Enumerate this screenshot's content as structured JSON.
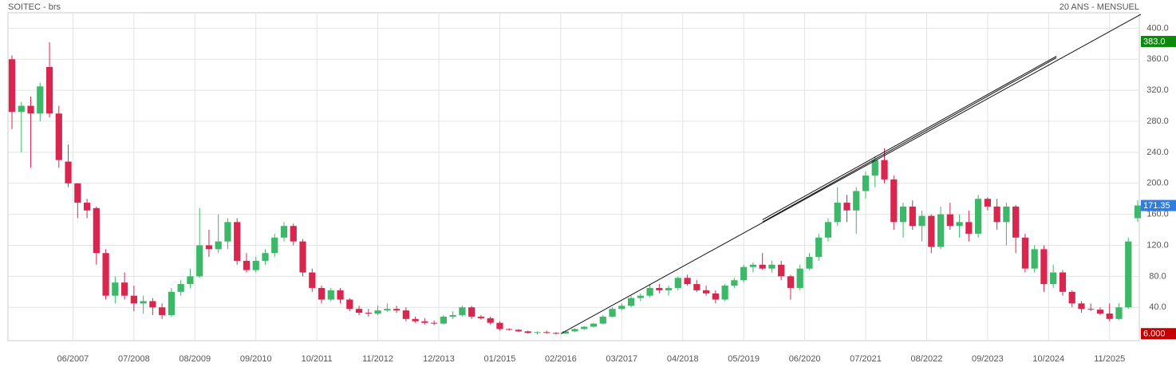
{
  "chart_data": {
    "type": "candlestick",
    "title": "SOITEC - brs",
    "subtitle": "20 ANS - MENSUEL",
    "x": [
      "05/2006",
      "07/2006",
      "09/2006",
      "11/2006",
      "01/2007",
      "03/2007",
      "05/2007",
      "07/2007",
      "09/2007",
      "11/2007",
      "01/2008",
      "03/2008",
      "05/2008",
      "07/2008",
      "09/2008",
      "11/2008",
      "01/2009",
      "03/2009",
      "05/2009",
      "07/2009",
      "09/2009",
      "11/2009",
      "01/2010",
      "03/2010",
      "05/2010",
      "07/2010",
      "09/2010",
      "11/2010",
      "01/2011",
      "03/2011",
      "05/2011",
      "07/2011",
      "09/2011",
      "11/2011",
      "01/2012",
      "03/2012",
      "05/2012",
      "07/2012",
      "09/2012",
      "11/2012",
      "01/2013",
      "03/2013",
      "05/2013",
      "07/2013",
      "09/2013",
      "11/2013",
      "01/2014",
      "03/2014",
      "05/2014",
      "07/2014",
      "09/2014",
      "11/2014",
      "01/2015",
      "03/2015",
      "05/2015",
      "07/2015",
      "09/2015",
      "11/2015",
      "01/2016",
      "03/2016",
      "05/2016",
      "07/2016",
      "09/2016",
      "11/2016",
      "01/2017",
      "03/2017",
      "05/2017",
      "07/2017",
      "09/2017",
      "11/2017",
      "01/2018",
      "03/2018",
      "05/2018",
      "07/2018",
      "09/2018",
      "11/2018",
      "01/2019",
      "03/2019",
      "05/2019",
      "07/2019",
      "09/2019",
      "11/2019",
      "01/2020",
      "03/2020",
      "05/2020",
      "07/2020",
      "09/2020",
      "11/2020",
      "01/2021",
      "03/2021",
      "05/2021",
      "07/2021",
      "09/2021",
      "11/2021",
      "01/2022",
      "03/2022",
      "05/2022",
      "07/2022",
      "09/2022",
      "11/2022",
      "01/2023",
      "03/2023",
      "05/2023",
      "07/2023",
      "09/2023",
      "11/2023",
      "01/2024",
      "03/2024",
      "05/2024",
      "07/2024",
      "09/2024",
      "11/2024",
      "01/2025",
      "03/2025",
      "05/2025",
      "07/2025",
      "09/2025",
      "11/2025",
      "01/2026",
      "03/2026",
      "05/2026"
    ],
    "open": [
      360,
      292,
      300,
      290,
      350,
      290,
      228,
      200,
      175,
      168,
      110,
      55,
      72,
      55,
      45,
      48,
      40,
      30,
      60,
      70,
      80,
      120,
      115,
      125,
      150,
      100,
      88,
      100,
      110,
      130,
      145,
      125,
      85,
      65,
      50,
      62,
      50,
      38,
      33,
      32,
      36,
      38,
      36,
      25,
      22,
      20,
      19,
      28,
      30,
      40,
      28,
      26,
      20,
      12,
      11,
      9,
      7,
      8,
      7,
      6,
      9,
      12,
      15,
      19,
      28,
      38,
      42,
      52,
      55,
      65,
      62,
      65,
      78,
      70,
      62,
      58,
      50,
      68,
      75,
      92,
      95,
      90,
      95,
      80,
      65,
      90,
      105,
      130,
      150,
      175,
      165,
      190,
      210,
      230,
      205,
      150,
      170,
      145,
      158,
      118,
      160,
      145,
      150,
      135,
      180,
      170,
      150,
      170,
      130,
      90,
      115,
      70,
      85,
      60,
      45,
      38,
      37,
      32,
      25,
      40,
      155
    ],
    "high": [
      365,
      305,
      312,
      330,
      382,
      300,
      250,
      200,
      180,
      170,
      115,
      80,
      85,
      68,
      55,
      52,
      45,
      65,
      75,
      90,
      168,
      140,
      160,
      155,
      155,
      110,
      105,
      115,
      135,
      150,
      148,
      128,
      90,
      68,
      65,
      65,
      52,
      42,
      38,
      42,
      45,
      42,
      40,
      28,
      26,
      23,
      30,
      35,
      42,
      42,
      30,
      28,
      22,
      13,
      12,
      10,
      9,
      10,
      8,
      10,
      13,
      16,
      20,
      30,
      40,
      45,
      55,
      58,
      70,
      70,
      68,
      80,
      82,
      75,
      68,
      62,
      70,
      78,
      95,
      98,
      110,
      100,
      100,
      82,
      95,
      110,
      135,
      155,
      195,
      185,
      195,
      215,
      235,
      245,
      210,
      175,
      178,
      165,
      160,
      170,
      175,
      160,
      165,
      185,
      182,
      180,
      175,
      172,
      135,
      120,
      120,
      95,
      88,
      62,
      48,
      45,
      40,
      45,
      45,
      130,
      178
    ],
    "low": [
      270,
      240,
      220,
      280,
      285,
      220,
      195,
      155,
      155,
      95,
      50,
      45,
      50,
      35,
      32,
      30,
      25,
      28,
      55,
      65,
      78,
      105,
      110,
      115,
      95,
      85,
      85,
      95,
      105,
      125,
      120,
      80,
      60,
      45,
      48,
      45,
      35,
      30,
      28,
      30,
      34,
      33,
      22,
      20,
      18,
      17,
      18,
      25,
      28,
      25,
      24,
      18,
      10,
      10,
      8,
      6,
      5,
      6,
      5,
      6,
      8,
      11,
      14,
      18,
      27,
      36,
      40,
      48,
      53,
      58,
      55,
      62,
      68,
      60,
      55,
      45,
      48,
      65,
      72,
      85,
      88,
      85,
      75,
      50,
      62,
      88,
      100,
      125,
      145,
      150,
      135,
      180,
      195,
      200,
      140,
      130,
      140,
      125,
      110,
      115,
      140,
      130,
      125,
      130,
      165,
      140,
      120,
      110,
      85,
      85,
      60,
      65,
      55,
      40,
      33,
      35,
      30,
      22,
      24,
      38,
      150
    ],
    "close": [
      292,
      300,
      290,
      325,
      290,
      230,
      200,
      175,
      165,
      110,
      55,
      72,
      55,
      45,
      48,
      40,
      30,
      60,
      70,
      80,
      120,
      115,
      125,
      150,
      100,
      88,
      100,
      110,
      130,
      145,
      125,
      85,
      65,
      50,
      62,
      50,
      38,
      33,
      32,
      36,
      38,
      36,
      25,
      22,
      20,
      19,
      28,
      30,
      40,
      28,
      26,
      20,
      12,
      11,
      9,
      7,
      8,
      7,
      6,
      9,
      12,
      15,
      19,
      28,
      38,
      42,
      52,
      55,
      65,
      62,
      65,
      78,
      70,
      62,
      58,
      50,
      68,
      75,
      92,
      95,
      90,
      95,
      80,
      65,
      90,
      105,
      130,
      150,
      175,
      165,
      190,
      210,
      230,
      205,
      150,
      170,
      145,
      158,
      118,
      160,
      145,
      150,
      135,
      180,
      170,
      150,
      170,
      130,
      90,
      115,
      70,
      85,
      60,
      45,
      38,
      37,
      32,
      25,
      40,
      125,
      171.35
    ],
    "up_color": "#3cb868",
    "down_color": "#d9264f",
    "ylim": [
      -3,
      420
    ],
    "yticks": [
      {
        "value": 40,
        "label": "40.0"
      },
      {
        "value": 80,
        "label": "80.0"
      },
      {
        "value": 120,
        "label": "120.0"
      },
      {
        "value": 160,
        "label": "160.0"
      },
      {
        "value": 200,
        "label": "200.0"
      },
      {
        "value": 240,
        "label": "240.0"
      },
      {
        "value": 280,
        "label": "280.0"
      },
      {
        "value": 320,
        "label": "320.0"
      },
      {
        "value": 360,
        "label": "360.0"
      },
      {
        "value": 400,
        "label": "400.0"
      }
    ],
    "xticks": [
      "06/2007",
      "07/2008",
      "08/2009",
      "09/2010",
      "10/2011",
      "11/2012",
      "12/2013",
      "01/2015",
      "02/2016",
      "03/2017",
      "04/2018",
      "05/2019",
      "06/2020",
      "07/2021",
      "08/2022",
      "09/2023",
      "10/2024",
      "11/2025"
    ],
    "grid": true,
    "trend_lines": [
      {
        "x": [
          "02/2016",
          "05/2026"
        ],
        "y": [
          6,
          418
        ]
      },
      {
        "x": [
          "09/2019",
          "11/2024"
        ],
        "y": [
          150,
          362
        ]
      },
      {
        "x": [
          "09/2019",
          "11/2024"
        ],
        "y": [
          153,
          364
        ]
      }
    ],
    "price_labels": [
      {
        "value": 383,
        "label": "383.0",
        "color": "#0b8a0b"
      },
      {
        "value": 171.35,
        "label": "171.35",
        "color": "#2f7de1"
      },
      {
        "value": 6,
        "label": "6.000",
        "color": "#c40000"
      }
    ]
  }
}
